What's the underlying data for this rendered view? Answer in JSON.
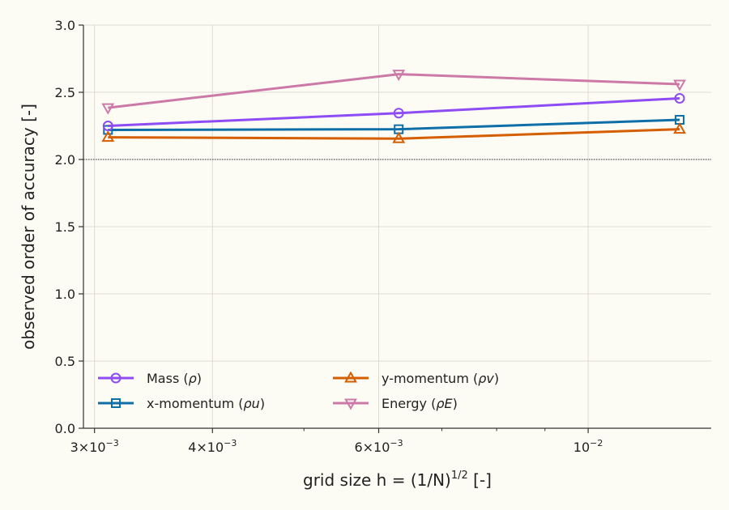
{
  "chart_data": {
    "type": "line",
    "x_scale": "log",
    "x": [
      0.0031,
      0.0063,
      0.0125
    ],
    "xlim": [
      0.00292,
      0.0135
    ],
    "ylim": [
      0,
      3.0
    ],
    "xlabel": "grid size  h = (1/N)",
    "xlabel_sup": "1/2",
    "xlabel_suffix": " [-]",
    "ylabel": "observed order of accuracy [-]",
    "grid": true,
    "reference_line": 2.0,
    "legend_position": "lower-left",
    "x_ticks": [
      {
        "value": 0.003,
        "mantissa": "3",
        "base": "10",
        "exp": "−3"
      },
      {
        "value": 0.004,
        "mantissa": "4",
        "base": "10",
        "exp": "−3"
      },
      {
        "value": 0.006,
        "mantissa": "6",
        "base": "10",
        "exp": "−3"
      },
      {
        "value": 0.01,
        "mantissa": "",
        "base": "10",
        "exp": "−2"
      }
    ],
    "x_minor_ticks": [
      0.005,
      0.007,
      0.008,
      0.009
    ],
    "y_ticks": [
      {
        "value": 0.0,
        "label": "0.0"
      },
      {
        "value": 0.5,
        "label": "0.5"
      },
      {
        "value": 1.0,
        "label": "1.0"
      },
      {
        "value": 1.5,
        "label": "1.5"
      },
      {
        "value": 2.0,
        "label": "2.0"
      },
      {
        "value": 2.5,
        "label": "2.5"
      },
      {
        "value": 3.0,
        "label": "3.0"
      }
    ],
    "series": [
      {
        "name": "Mass",
        "symbol": "ρ",
        "marker": "circle",
        "color": "#8e4cf4",
        "values": [
          2.25,
          2.345,
          2.455
        ]
      },
      {
        "name": "x-momentum",
        "symbol": "ρu",
        "marker": "square",
        "color": "#0e6fa8",
        "values": [
          2.22,
          2.225,
          2.295
        ]
      },
      {
        "name": "y-momentum",
        "symbol": "ρv",
        "marker": "triangle-up",
        "color": "#d55e00",
        "values": [
          2.165,
          2.155,
          2.225
        ]
      },
      {
        "name": "Energy",
        "symbol": "ρE",
        "marker": "triangle-down",
        "color": "#cc79a7",
        "values": [
          2.385,
          2.635,
          2.56
        ]
      }
    ]
  }
}
